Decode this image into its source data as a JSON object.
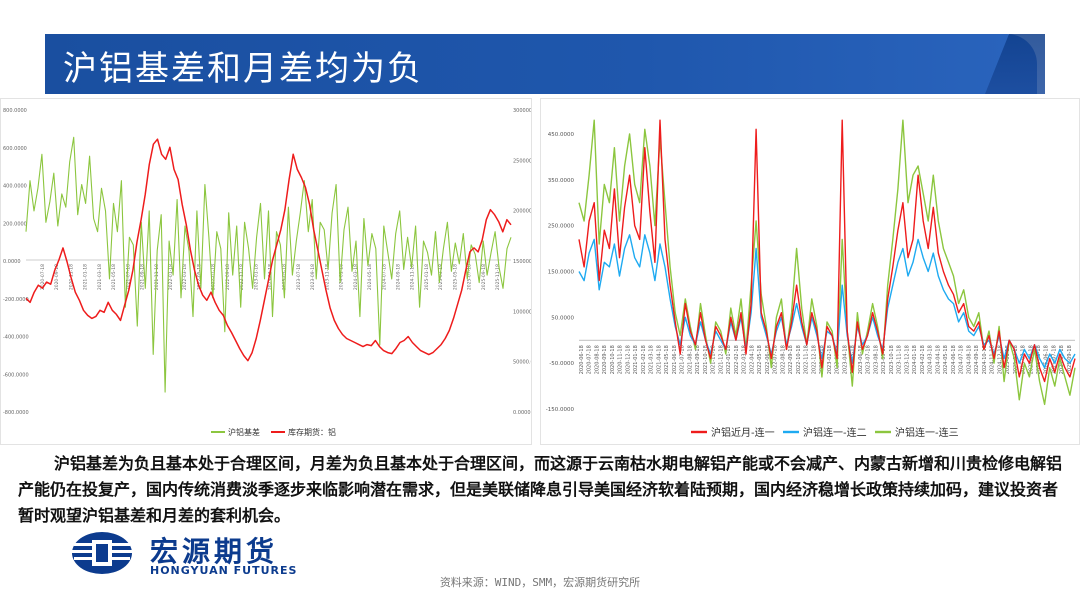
{
  "title": "沪铝基差和月差均为负",
  "body_text": "沪铝基差为负且基本处于合理区间，月差为负且基本处于合理区间，而这源于云南枯水期电解铝产能或不会减产、内蒙古新增和川贵检修电解铝产能仍在投复产，国内传统消费淡季逐步来临影响潜在需求，但是美联储降息引导美国经济软着陆预期，国内经济稳增长政策持续加码，建议投资者暂时观望沪铝基差和月差的套利机会。",
  "logo": {
    "cn": "宏源期货",
    "en": "HONGYUAN FUTURES"
  },
  "source": "资料来源：WIND，SMM，宏源期货研究所",
  "colors": {
    "green": "#8cc63f",
    "red": "#ee1c1c",
    "blue": "#1eaaf1",
    "banner": "#1a4fa0"
  },
  "chart_data": [
    {
      "type": "line",
      "left_axis_ticks": [
        "800.0000",
        "600.0000",
        "400.0000",
        "200.0000",
        "0.0000",
        "-200.0000",
        "-400.0000",
        "-600.0000",
        "-800.0000"
      ],
      "right_axis_ticks": [
        "300000.0000",
        "250000.0000",
        "200000.0000",
        "150000.0000",
        "100000.0000",
        "50000.0000",
        "0.0000"
      ],
      "ylim_left": [
        -800,
        800
      ],
      "ylim_right": [
        0,
        300000
      ],
      "x_ticks": [
        "2020-07-18",
        "2020-09-18",
        "2020-11-18",
        "2021-01-18",
        "2021-03-18",
        "2021-05-18",
        "2021-07-18",
        "2021-09-18",
        "2021-11-18",
        "2022-01-18",
        "2022-03-18",
        "2022-05-18",
        "2022-07-18",
        "2022-09-18",
        "2022-11-18",
        "2023-01-18",
        "2023-03-18",
        "2023-05-18",
        "2023-07-18",
        "2023-09-18",
        "2023-11-18",
        "2024-01-18",
        "2024-03-18",
        "2024-05-18",
        "2024-07-18",
        "2024-09-18",
        "2024-11-18",
        "2025-01-18",
        "2025-03-18",
        "2025-05-18",
        "2025-07-18",
        "2025-09-18",
        "2025-11-18"
      ],
      "series": [
        {
          "name": "沪铝基差",
          "axis": "left",
          "color": "#8cc63f",
          "values": [
            150,
            420,
            260,
            380,
            560,
            200,
            310,
            460,
            180,
            350,
            280,
            520,
            650,
            240,
            400,
            300,
            550,
            220,
            150,
            380,
            260,
            -100,
            300,
            150,
            420,
            -250,
            120,
            80,
            -350,
            200,
            -150,
            260,
            -500,
            50,
            240,
            -700,
            100,
            -80,
            320,
            -200,
            180,
            50,
            -300,
            260,
            -150,
            400,
            120,
            -200,
            150,
            60,
            -380,
            250,
            -80,
            180,
            -250,
            200,
            60,
            -150,
            120,
            300,
            -100,
            260,
            -300,
            150,
            80,
            -200,
            280,
            -80,
            100,
            250,
            420,
            150,
            320,
            -100,
            200,
            160,
            -50,
            250,
            400,
            -120,
            160,
            280,
            -60,
            100,
            -300,
            220,
            -30,
            140,
            60,
            -450,
            180,
            40,
            -100,
            140,
            260,
            -50,
            120,
            -40,
            180,
            -250,
            100,
            40,
            -80,
            150,
            -120,
            60,
            200,
            -60,
            90,
            -20,
            140,
            -100,
            80,
            30,
            -120,
            100,
            -80,
            40,
            150,
            -40,
            -150,
            60,
            120
          ]
        },
        {
          "name": "库存期货：铝",
          "axis": "right",
          "color": "#ee1c1c",
          "values": [
            112000,
            108000,
            118000,
            125000,
            122000,
            128000,
            126000,
            140000,
            150000,
            162000,
            148000,
            132000,
            118000,
            110000,
            100000,
            95000,
            92000,
            94000,
            100000,
            98000,
            108000,
            100000,
            96000,
            90000,
            105000,
            120000,
            140000,
            168000,
            190000,
            215000,
            245000,
            265000,
            270000,
            255000,
            250000,
            262000,
            240000,
            230000,
            205000,
            185000,
            160000,
            140000,
            125000,
            115000,
            110000,
            118000,
            108000,
            100000,
            95000,
            85000,
            78000,
            70000,
            62000,
            55000,
            50000,
            58000,
            72000,
            90000,
            110000,
            130000,
            150000,
            165000,
            180000,
            200000,
            230000,
            255000,
            240000,
            232000,
            222000,
            205000,
            180000,
            160000,
            140000,
            120000,
            102000,
            90000,
            82000,
            76000,
            72000,
            70000,
            68000,
            66000,
            64000,
            66000,
            65000,
            70000,
            64000,
            60000,
            58000,
            57000,
            62000,
            68000,
            70000,
            74000,
            68000,
            64000,
            60000,
            58000,
            56000,
            58000,
            62000,
            66000,
            72000,
            80000,
            92000,
            106000,
            120000,
            140000,
            158000,
            162000,
            158000,
            170000,
            190000,
            200000,
            195000,
            188000,
            178000,
            190000,
            185000
          ]
        }
      ]
    },
    {
      "type": "line",
      "y_ticks": [
        "450.0000",
        "350.0000",
        "250.0000",
        "150.0000",
        "50.0000",
        "-50.0000",
        "-150.0000"
      ],
      "ylim": [
        -150,
        500
      ],
      "x_ticks": [
        "2020-06-18",
        "2020-07-18",
        "2020-08-18",
        "2020-09-18",
        "2020-10-18",
        "2020-11-18",
        "2020-12-18",
        "2021-01-18",
        "2021-02-18",
        "2021-03-18",
        "2021-04-18",
        "2021-05-18",
        "2021-06-18",
        "2021-07-18",
        "2021-08-18",
        "2021-09-18",
        "2021-10-18",
        "2021-11-18",
        "2021-12-18",
        "2022-01-18",
        "2022-02-18",
        "2022-03-18",
        "2022-04-18",
        "2022-05-18",
        "2022-06-18",
        "2022-07-18",
        "2022-08-18",
        "2022-09-18",
        "2022-10-18",
        "2022-11-18",
        "2022-12-18",
        "2023-01-18",
        "2023-02-18",
        "2023-03-18",
        "2023-04-18",
        "2023-05-18",
        "2023-06-18",
        "2023-07-18",
        "2023-08-18",
        "2023-09-18",
        "2023-10-18",
        "2023-11-18",
        "2023-12-18",
        "2024-01-18",
        "2024-02-18",
        "2024-03-18",
        "2024-04-18",
        "2024-05-18",
        "2024-06-18",
        "2024-07-18",
        "2024-08-18",
        "2024-09-18",
        "2024-10-18",
        "2024-11-18",
        "2024-12-18",
        "2025-01-18",
        "2025-02-18",
        "2025-03-18",
        "2025-04-18",
        "2025-05-18",
        "2025-06-18",
        "2025-07-18",
        "2025-08-18",
        "2025-09-18"
      ],
      "series": [
        {
          "name": "沪铝近月-连一",
          "color": "#ee1c1c",
          "values": [
            220,
            160,
            260,
            300,
            130,
            240,
            200,
            330,
            180,
            290,
            360,
            250,
            220,
            420,
            280,
            170,
            480,
            220,
            120,
            40,
            -30,
            80,
            20,
            -10,
            60,
            0,
            -40,
            30,
            10,
            -20,
            50,
            0,
            60,
            -30,
            80,
            460,
            60,
            20,
            -40,
            30,
            60,
            -20,
            40,
            120,
            40,
            -10,
            60,
            20,
            -60,
            30,
            10,
            -40,
            480,
            20,
            -70,
            40,
            -20,
            10,
            60,
            20,
            -30,
            90,
            160,
            240,
            300,
            180,
            220,
            360,
            260,
            200,
            290,
            190,
            150,
            120,
            100,
            60,
            80,
            30,
            20,
            40,
            -20,
            10,
            -40,
            20,
            -60,
            0,
            -20,
            -80,
            -30,
            -50,
            -10,
            -60,
            -90,
            -40,
            -70,
            -30,
            -60,
            -80,
            -40
          ]
        },
        {
          "name": "沪铝连一-连二",
          "color": "#1eaaf1",
          "values": [
            150,
            130,
            190,
            220,
            110,
            170,
            160,
            210,
            140,
            200,
            230,
            180,
            160,
            230,
            190,
            130,
            210,
            160,
            90,
            30,
            -10,
            50,
            10,
            -10,
            40,
            0,
            -30,
            20,
            0,
            -20,
            40,
            0,
            50,
            -20,
            60,
            200,
            50,
            10,
            -30,
            20,
            50,
            -10,
            30,
            80,
            30,
            -10,
            50,
            10,
            -40,
            20,
            10,
            -30,
            120,
            10,
            -50,
            30,
            -10,
            10,
            50,
            10,
            -20,
            70,
            120,
            170,
            200,
            140,
            170,
            220,
            180,
            150,
            190,
            140,
            110,
            90,
            80,
            40,
            60,
            20,
            10,
            30,
            -10,
            0,
            -30,
            10,
            -40,
            0,
            -20,
            -50,
            -20,
            -40,
            -10,
            -40,
            -60,
            -30,
            -50,
            -20,
            -40,
            -50,
            -30
          ]
        },
        {
          "name": "沪铝连一-连三",
          "color": "#8cc63f",
          "values": [
            300,
            260,
            360,
            480,
            210,
            340,
            300,
            420,
            260,
            380,
            450,
            340,
            300,
            460,
            380,
            250,
            440,
            300,
            160,
            60,
            10,
            90,
            30,
            -20,
            80,
            10,
            -50,
            40,
            20,
            -30,
            70,
            10,
            90,
            -20,
            120,
            260,
            100,
            30,
            -60,
            50,
            90,
            -20,
            60,
            200,
            70,
            -10,
            90,
            30,
            -80,
            40,
            20,
            -60,
            220,
            20,
            -100,
            60,
            -30,
            20,
            80,
            30,
            -40,
            120,
            220,
            330,
            480,
            300,
            360,
            380,
            320,
            260,
            360,
            260,
            200,
            170,
            140,
            80,
            110,
            50,
            30,
            60,
            -20,
            20,
            -50,
            30,
            -90,
            0,
            -40,
            -130,
            -50,
            -80,
            -20,
            -90,
            -140,
            -60,
            -100,
            -40,
            -80,
            -120,
            -60
          ]
        }
      ]
    }
  ]
}
